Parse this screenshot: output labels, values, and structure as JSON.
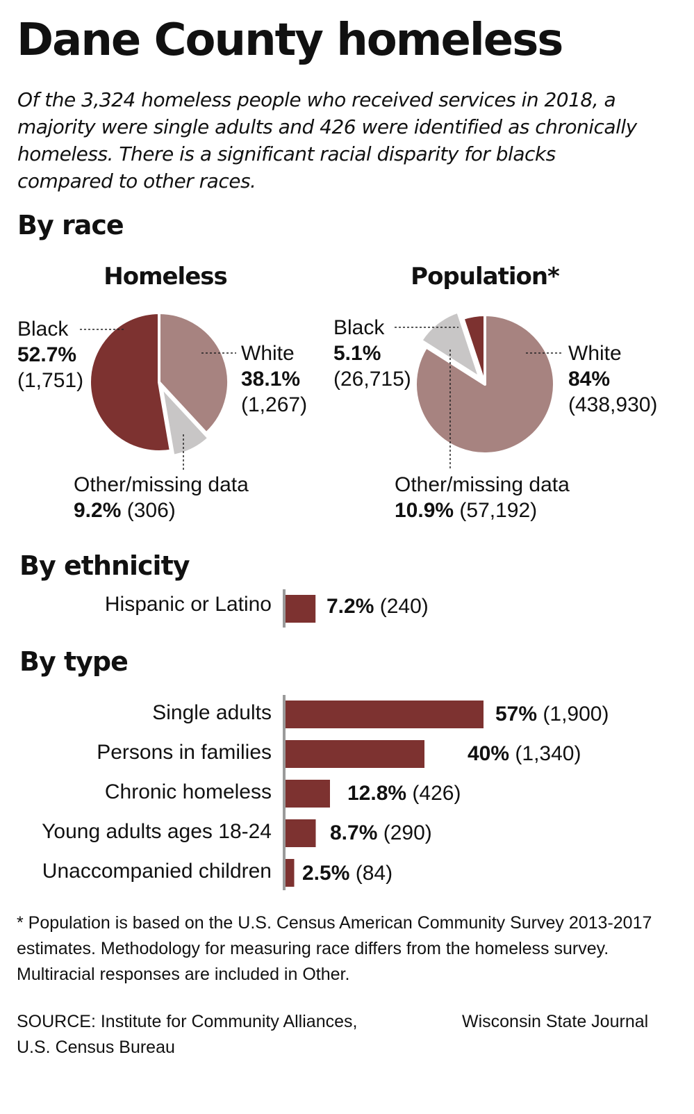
{
  "header": {
    "title": "Dane County homeless",
    "intro": "Of the 3,324 homeless people who received services in 2018, a majority were single adults and 426 were identified as chronically homeless. There is a significant racial disparity for blacks compared to other races."
  },
  "sections": {
    "race": "By race",
    "ethnicity": "By ethnicity",
    "type": "By type"
  },
  "colors": {
    "black": "#7d3230",
    "white": "#a78380",
    "other": "#c8c6c6",
    "bar": "#7d3230",
    "axis": "#9a9a9a"
  },
  "chart_data": [
    {
      "type": "pie",
      "title": "Homeless",
      "slices": [
        {
          "name": "White",
          "pct": "38.1%",
          "value": 38.1,
          "count": "(1,267)"
        },
        {
          "name": "Other/missing data",
          "pct": "9.2%",
          "value": 9.2,
          "count": "(306)"
        },
        {
          "name": "Black",
          "pct": "52.7%",
          "value": 52.7,
          "count": "(1,751)"
        }
      ]
    },
    {
      "type": "pie",
      "title": "Population*",
      "slices": [
        {
          "name": "White",
          "pct": "84%",
          "value": 84,
          "count": "(438,930)"
        },
        {
          "name": "Other/missing data",
          "pct": "10.9%",
          "value": 10.9,
          "count": "(57,192)"
        },
        {
          "name": "Black",
          "pct": "5.1%",
          "value": 5.1,
          "count": "(26,715)"
        }
      ]
    },
    {
      "type": "bar",
      "title": "By ethnicity",
      "categories": [
        "Hispanic or Latino"
      ],
      "values": [
        7.2
      ],
      "pct_labels": [
        "7.2%"
      ],
      "count_labels": [
        "(240)"
      ]
    },
    {
      "type": "bar",
      "title": "By type",
      "categories": [
        "Single adults",
        "Persons in families",
        "Chronic homeless",
        "Young adults ages 18-24",
        "Unaccompanied children"
      ],
      "values": [
        57,
        40,
        12.8,
        8.7,
        2.5
      ],
      "pct_labels": [
        "57%",
        "40%",
        "12.8%",
        "8.7%",
        "2.5%"
      ],
      "count_labels": [
        "(1,900)",
        "(1,340)",
        "(426)",
        "(290)",
        "(84)"
      ]
    }
  ],
  "footnote": "* Population is based on the U.S. Census American Community Survey 2013-2017 estimates. Methodology for measuring race differs from the homeless survey. Multiracial responses are included in Other.",
  "source_line1": "SOURCE: Institute for Community Alliances,",
  "source_line2": "U.S. Census Bureau",
  "credit": "Wisconsin State Journal"
}
